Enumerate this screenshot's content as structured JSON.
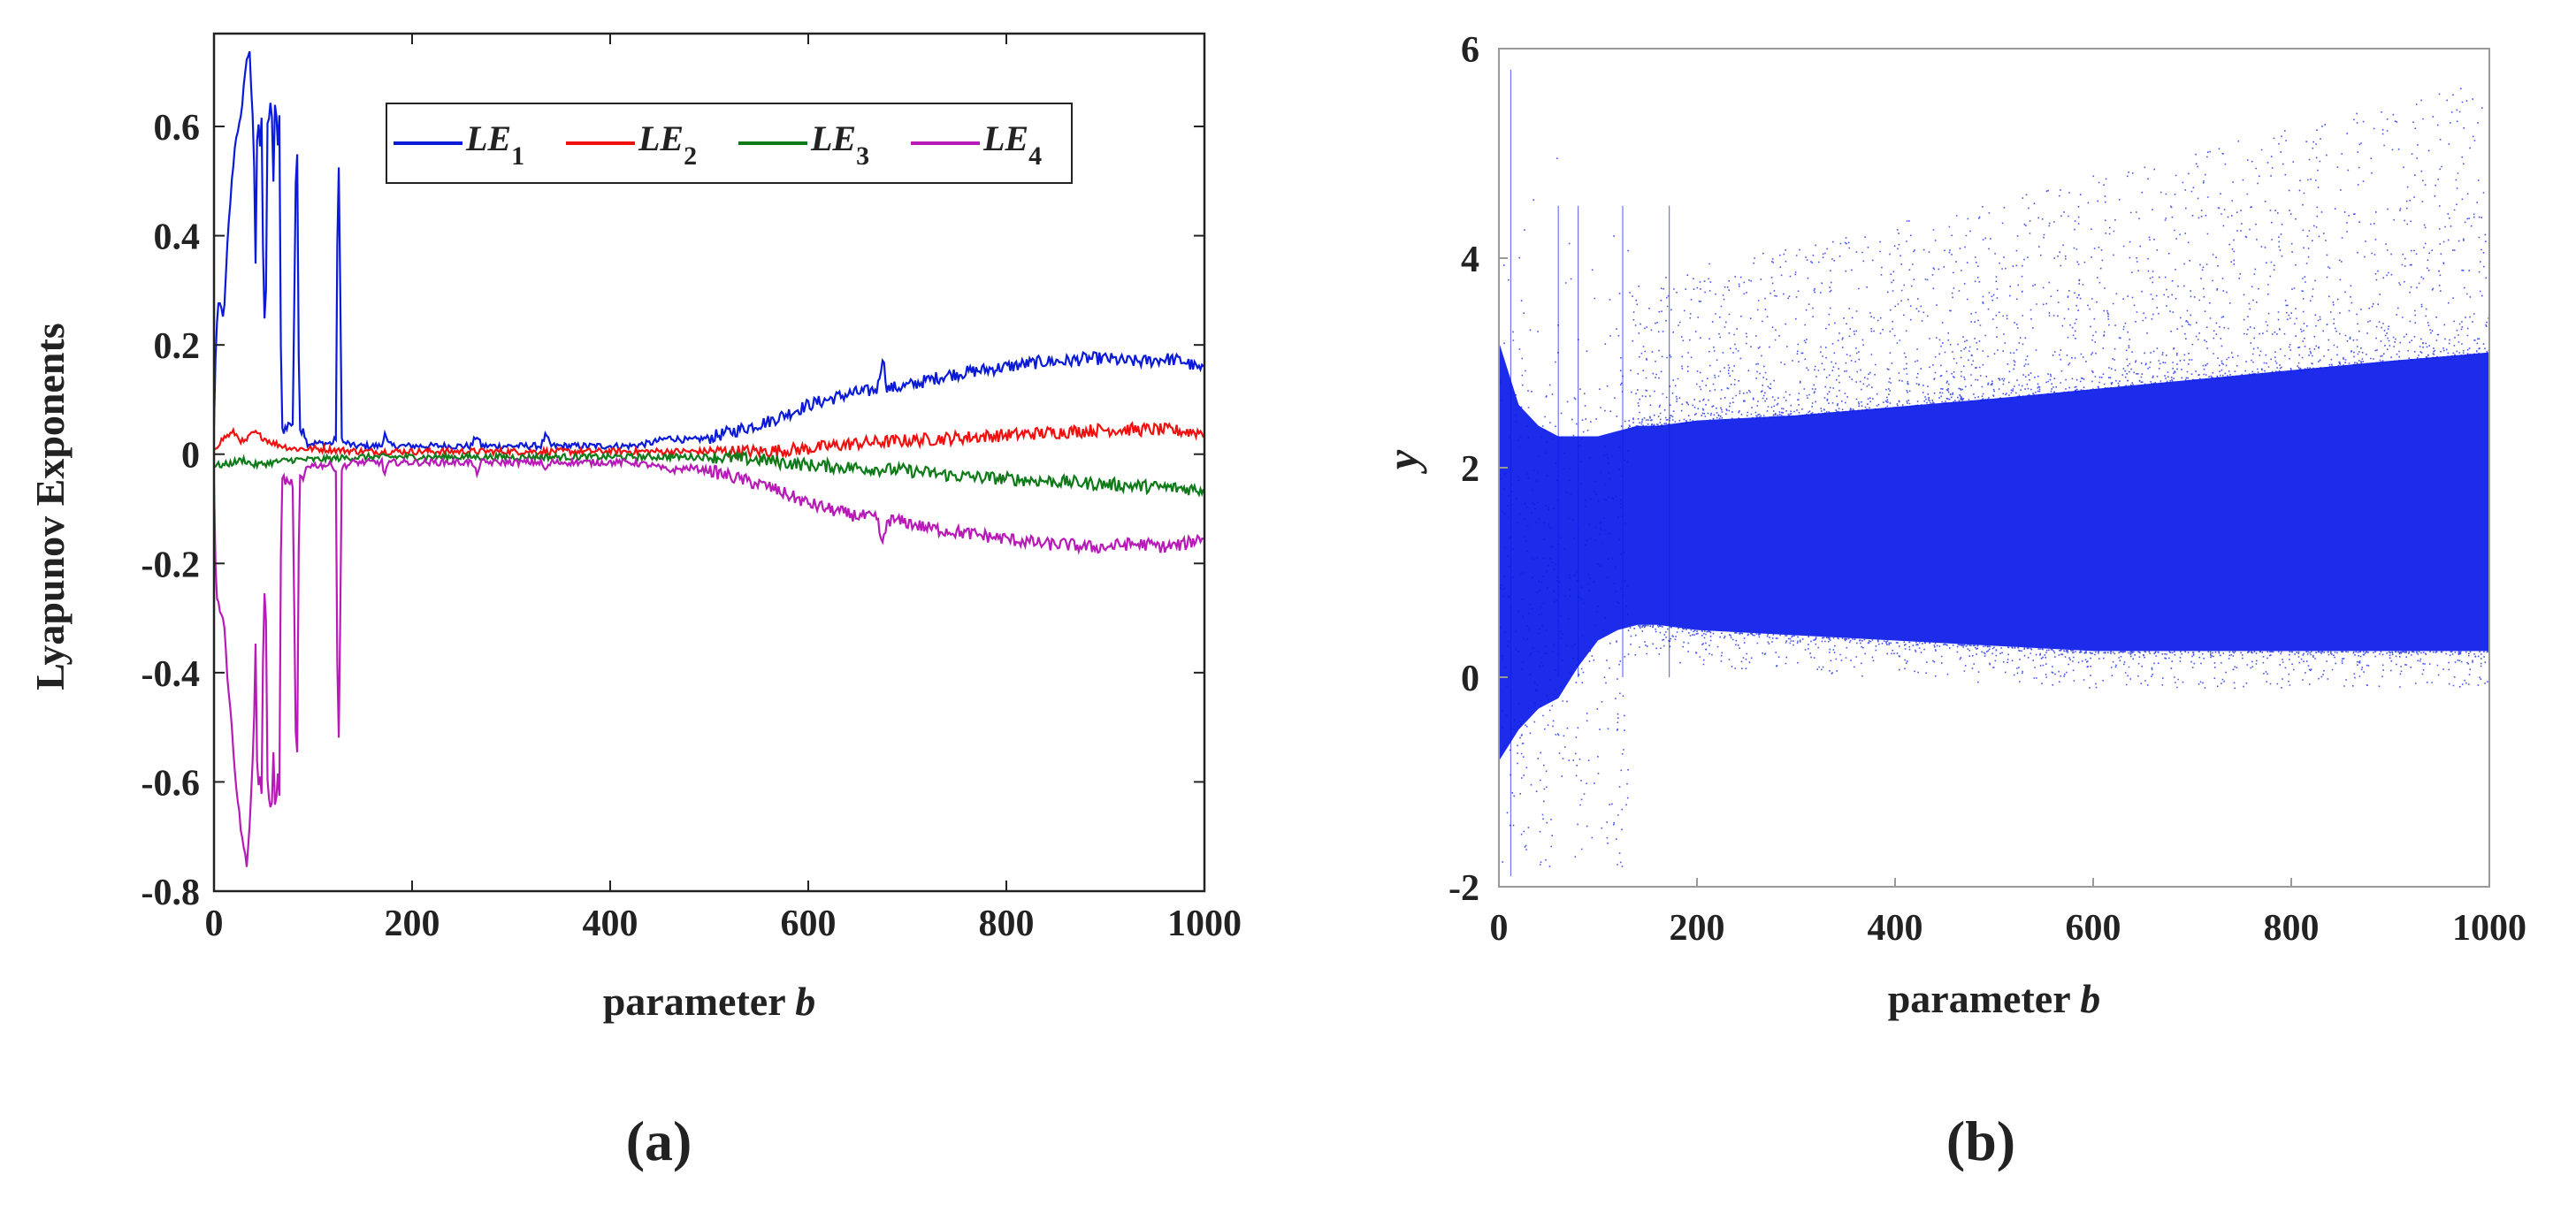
{
  "chart_data": [
    {
      "type": "line",
      "panel_label": "(a)",
      "xlabel": "parameter",
      "xlabel_var": "b",
      "ylabel": "Lyapunov Exponents",
      "xlim": [
        0,
        1000
      ],
      "ylim": [
        -0.8,
        0.77
      ],
      "xticks": [
        0,
        200,
        400,
        600,
        800,
        1000
      ],
      "yticks": [
        0.6,
        0.4,
        0.2,
        0,
        -0.2,
        -0.4,
        -0.6,
        -0.8
      ],
      "ytick_labels": [
        "0.6",
        "0.4",
        "0.2",
        "0",
        "-0.2",
        "-0.4",
        "-0.6",
        "-0.8"
      ],
      "legend_position": "top-right",
      "series": [
        {
          "name": "LE",
          "sub": "1",
          "color": "#0a1ad8",
          "x": [
            0,
            2,
            5,
            10,
            14,
            18,
            22,
            25,
            28,
            30,
            33,
            36,
            38,
            40,
            42,
            44,
            46,
            48,
            50,
            52,
            54,
            56,
            58,
            60,
            62,
            64,
            66,
            68,
            70,
            72,
            74,
            76,
            78,
            80,
            82,
            84,
            86,
            88,
            90,
            92,
            94,
            96,
            100,
            105,
            110,
            115,
            120,
            123,
            125,
            127,
            128,
            130,
            135,
            140,
            150,
            160,
            170,
            172,
            175,
            180,
            200,
            220,
            240,
            260,
            265,
            270,
            300,
            330,
            335,
            340,
            360,
            380,
            400,
            420,
            440,
            460,
            480,
            500,
            520,
            540,
            560,
            580,
            600,
            620,
            640,
            660,
            670,
            675,
            678,
            680,
            700,
            720,
            740,
            760,
            780,
            800,
            820,
            840,
            860,
            880,
            900,
            920,
            940,
            960,
            980,
            1000
          ],
          "values": [
            0.05,
            0.22,
            0.28,
            0.25,
            0.4,
            0.5,
            0.58,
            0.6,
            0.62,
            0.68,
            0.72,
            0.74,
            0.65,
            0.58,
            0.35,
            0.65,
            0.55,
            0.62,
            0.3,
            0.2,
            0.6,
            0.62,
            0.66,
            0.5,
            0.68,
            0.55,
            0.62,
            0.05,
            0.04,
            0.05,
            0.05,
            0.06,
            0.05,
            0.06,
            0.48,
            0.55,
            0.05,
            0.04,
            0.05,
            0.03,
            0.02,
            0.02,
            0.02,
            0.02,
            0.02,
            0.02,
            0.02,
            0.03,
            0.5,
            0.54,
            0.05,
            0.02,
            0.02,
            0.015,
            0.015,
            0.015,
            0.015,
            0.045,
            0.02,
            0.015,
            0.015,
            0.015,
            0.015,
            0.015,
            0.035,
            0.015,
            0.015,
            0.015,
            0.035,
            0.015,
            0.015,
            0.015,
            0.015,
            0.015,
            0.02,
            0.03,
            0.025,
            0.03,
            0.04,
            0.05,
            0.06,
            0.075,
            0.09,
            0.1,
            0.11,
            0.115,
            0.12,
            0.18,
            0.14,
            0.12,
            0.125,
            0.135,
            0.145,
            0.15,
            0.155,
            0.16,
            0.165,
            0.17,
            0.17,
            0.175,
            0.175,
            0.17,
            0.17,
            0.175,
            0.17,
            0.15
          ]
        },
        {
          "name": "LE",
          "sub": "2",
          "color": "#f01010",
          "x": [
            0,
            10,
            20,
            30,
            40,
            50,
            60,
            80,
            100,
            150,
            200,
            300,
            400,
            500,
            550,
            600,
            650,
            700,
            750,
            800,
            850,
            900,
            950,
            1000
          ],
          "values": [
            0.01,
            0.03,
            0.04,
            0.02,
            0.04,
            0.03,
            0.02,
            0.01,
            0.01,
            0.005,
            0.005,
            0.005,
            0.005,
            0.005,
            0.005,
            0.01,
            0.02,
            0.025,
            0.03,
            0.035,
            0.04,
            0.045,
            0.045,
            0.04
          ]
        },
        {
          "name": "LE",
          "sub": "3",
          "color": "#0e7a18",
          "x": [
            0,
            10,
            20,
            30,
            40,
            60,
            80,
            100,
            150,
            200,
            300,
            400,
            500,
            550,
            600,
            650,
            700,
            750,
            800,
            850,
            900,
            950,
            1000
          ],
          "values": [
            -0.02,
            -0.02,
            -0.015,
            -0.01,
            -0.02,
            -0.015,
            -0.01,
            -0.01,
            -0.005,
            -0.005,
            -0.005,
            -0.005,
            -0.005,
            -0.01,
            -0.02,
            -0.025,
            -0.03,
            -0.04,
            -0.045,
            -0.05,
            -0.055,
            -0.06,
            -0.065
          ]
        },
        {
          "name": "LE",
          "sub": "4",
          "color": "#b81ab8",
          "x": [
            0,
            2,
            5,
            10,
            14,
            18,
            22,
            25,
            28,
            30,
            33,
            36,
            38,
            40,
            42,
            44,
            46,
            48,
            50,
            52,
            54,
            56,
            58,
            60,
            62,
            64,
            66,
            68,
            70,
            72,
            74,
            76,
            78,
            80,
            82,
            84,
            86,
            88,
            90,
            92,
            94,
            96,
            100,
            105,
            110,
            115,
            120,
            123,
            125,
            127,
            128,
            130,
            135,
            140,
            150,
            160,
            170,
            172,
            175,
            180,
            200,
            220,
            240,
            260,
            265,
            270,
            300,
            330,
            335,
            340,
            360,
            380,
            400,
            420,
            440,
            460,
            480,
            500,
            520,
            540,
            560,
            580,
            600,
            620,
            640,
            660,
            670,
            675,
            678,
            680,
            700,
            720,
            740,
            760,
            780,
            800,
            820,
            840,
            860,
            880,
            900,
            920,
            940,
            960,
            980,
            1000
          ],
          "values": [
            -0.05,
            -0.25,
            -0.28,
            -0.3,
            -0.42,
            -0.5,
            -0.6,
            -0.65,
            -0.7,
            -0.72,
            -0.75,
            -0.68,
            -0.6,
            -0.52,
            -0.35,
            -0.64,
            -0.58,
            -0.62,
            -0.3,
            -0.2,
            -0.6,
            -0.64,
            -0.66,
            -0.55,
            -0.67,
            -0.58,
            -0.62,
            -0.05,
            -0.04,
            -0.05,
            -0.05,
            -0.06,
            -0.05,
            -0.06,
            -0.5,
            -0.55,
            -0.05,
            -0.04,
            -0.05,
            -0.03,
            -0.02,
            -0.02,
            -0.02,
            -0.02,
            -0.02,
            -0.02,
            -0.02,
            -0.03,
            -0.5,
            -0.53,
            -0.05,
            -0.02,
            -0.02,
            -0.015,
            -0.015,
            -0.015,
            -0.015,
            -0.04,
            -0.02,
            -0.015,
            -0.015,
            -0.015,
            -0.015,
            -0.015,
            -0.035,
            -0.015,
            -0.015,
            -0.015,
            -0.03,
            -0.015,
            -0.015,
            -0.015,
            -0.015,
            -0.015,
            -0.02,
            -0.03,
            -0.025,
            -0.03,
            -0.04,
            -0.05,
            -0.06,
            -0.075,
            -0.09,
            -0.1,
            -0.11,
            -0.115,
            -0.12,
            -0.17,
            -0.14,
            -0.12,
            -0.125,
            -0.135,
            -0.14,
            -0.145,
            -0.15,
            -0.155,
            -0.16,
            -0.165,
            -0.165,
            -0.17,
            -0.17,
            -0.165,
            -0.165,
            -0.17,
            -0.165,
            -0.15
          ]
        }
      ]
    },
    {
      "type": "scatter",
      "panel_label": "(b)",
      "xlabel": "parameter",
      "xlabel_var": "b",
      "ylabel": "y",
      "xlim": [
        0,
        1000
      ],
      "ylim": [
        -2,
        6
      ],
      "xticks": [
        0,
        200,
        400,
        600,
        800,
        1000
      ],
      "yticks": [
        6,
        4,
        2,
        0,
        -2
      ],
      "ytick_labels": [
        "6",
        "4",
        "2",
        "0",
        "-2"
      ],
      "color": "#0a1ae8",
      "band": {
        "b": [
          0,
          20,
          40,
          60,
          80,
          100,
          120,
          140,
          160,
          200,
          300,
          400,
          500,
          600,
          700,
          800,
          900,
          1000
        ],
        "lower": [
          -0.8,
          -0.5,
          -0.3,
          -0.2,
          0.1,
          0.35,
          0.45,
          0.5,
          0.5,
          0.45,
          0.4,
          0.35,
          0.3,
          0.25,
          0.25,
          0.25,
          0.25,
          0.25
        ],
        "upper": [
          3.2,
          2.6,
          2.4,
          2.3,
          2.3,
          2.3,
          2.35,
          2.4,
          2.4,
          2.45,
          2.5,
          2.58,
          2.66,
          2.75,
          2.84,
          2.93,
          3.02,
          3.1
        ]
      }
    }
  ]
}
